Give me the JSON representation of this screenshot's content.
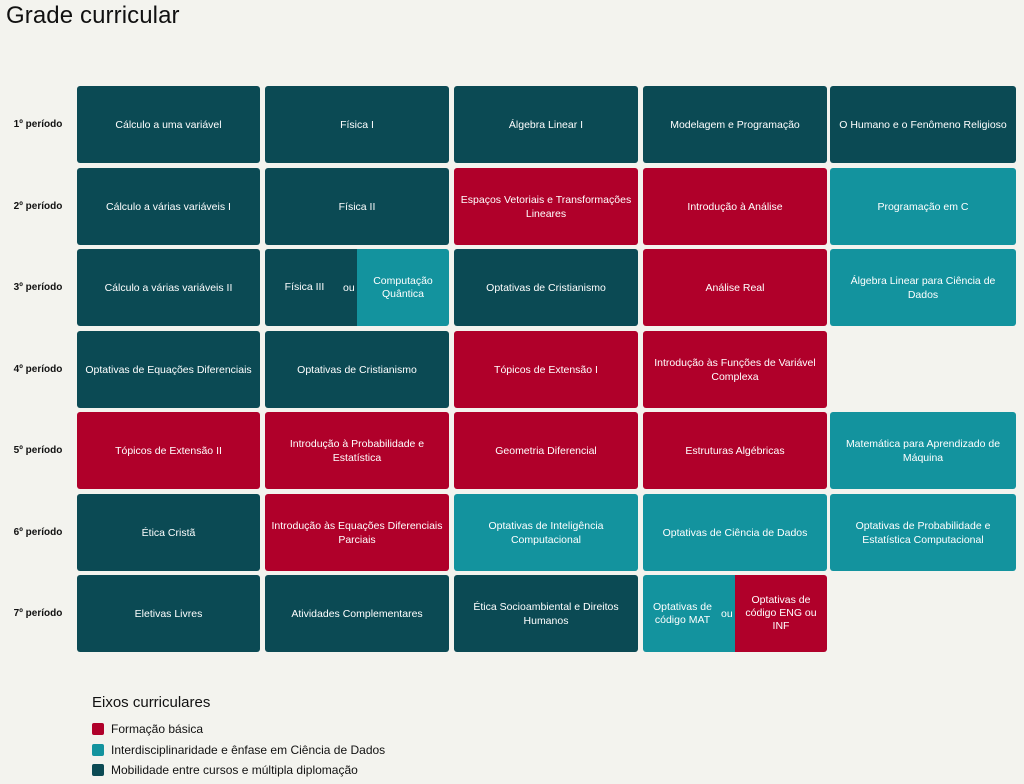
{
  "title": "Grade curricular",
  "colors": {
    "formacao_basica": "#b0002a",
    "interdisciplinaridade": "#13939e",
    "mobilidade": "#0b4a54",
    "background": "#f3f3ee"
  },
  "periods": [
    {
      "label": "1º período",
      "courses": [
        {
          "name": "Cálculo a uma variável",
          "axis": "mobilidade"
        },
        {
          "name": "Física I",
          "axis": "mobilidade"
        },
        {
          "name": "Álgebra Linear I",
          "axis": "mobilidade"
        },
        {
          "name": "Modelagem e Programação",
          "axis": "mobilidade"
        },
        {
          "name": "O Humano e o Fenômeno Religioso",
          "axis": "mobilidade"
        }
      ]
    },
    {
      "label": "2º período",
      "courses": [
        {
          "name": "Cálculo a várias variáveis I",
          "axis": "mobilidade"
        },
        {
          "name": "Física II",
          "axis": "mobilidade"
        },
        {
          "name": "Espaços Vetoriais e Transformações Lineares",
          "axis": "formacao_basica"
        },
        {
          "name": "Introdução à Análise",
          "axis": "formacao_basica"
        },
        {
          "name": "Programação em C",
          "axis": "interdisciplinaridade"
        }
      ]
    },
    {
      "label": "3º período",
      "courses": [
        {
          "name": "Cálculo a várias variáveis II",
          "axis": "mobilidade"
        },
        {
          "options": [
            {
              "name": "Física III",
              "axis": "mobilidade"
            },
            {
              "name": "Computação Quântica",
              "axis": "interdisciplinaridade"
            }
          ],
          "separator": "ou"
        },
        {
          "name": "Optativas de Cristianismo",
          "axis": "mobilidade"
        },
        {
          "name": "Análise Real",
          "axis": "formacao_basica"
        },
        {
          "name": "Álgebra Linear para Ciência de Dados",
          "axis": "interdisciplinaridade"
        }
      ]
    },
    {
      "label": "4º período",
      "courses": [
        {
          "name": "Optativas de Equações Diferenciais",
          "axis": "mobilidade"
        },
        {
          "name": "Optativas de Cristianismo",
          "axis": "mobilidade"
        },
        {
          "name": "Tópicos de Extensão I",
          "axis": "formacao_basica"
        },
        {
          "name": "Introdução às Funções de Variável Complexa",
          "axis": "formacao_basica"
        }
      ]
    },
    {
      "label": "5º período",
      "courses": [
        {
          "name": "Tópicos de Extensão II",
          "axis": "formacao_basica"
        },
        {
          "name": "Introdução à Probabilidade e Estatística",
          "axis": "formacao_basica"
        },
        {
          "name": "Geometria Diferencial",
          "axis": "formacao_basica"
        },
        {
          "name": "Estruturas Algébricas",
          "axis": "formacao_basica"
        },
        {
          "name": "Matemática para Aprendizado de Máquina",
          "axis": "interdisciplinaridade"
        }
      ]
    },
    {
      "label": "6º período",
      "courses": [
        {
          "name": "Ética Cristã",
          "axis": "mobilidade"
        },
        {
          "name": "Introdução às Equações Diferenciais Parciais",
          "axis": "formacao_basica"
        },
        {
          "name": "Optativas de Inteligência Computacional",
          "axis": "interdisciplinaridade"
        },
        {
          "name": "Optativas de Ciência de Dados",
          "axis": "interdisciplinaridade"
        },
        {
          "name": "Optativas de Probabilidade e Estatística Computacional",
          "axis": "interdisciplinaridade"
        }
      ]
    },
    {
      "label": "7º período",
      "courses": [
        {
          "name": "Eletivas Livres",
          "axis": "mobilidade"
        },
        {
          "name": "Atividades Complementares",
          "axis": "mobilidade"
        },
        {
          "name": "Ética Socioambiental e Direitos Humanos",
          "axis": "mobilidade"
        },
        {
          "options": [
            {
              "name": "Optativas de código MAT",
              "axis": "interdisciplinaridade"
            },
            {
              "name": "Optativas de código ENG ou INF",
              "axis": "formacao_basica"
            }
          ],
          "separator": "ou"
        }
      ]
    }
  ],
  "legend": {
    "title": "Eixos curriculares",
    "items": [
      {
        "label": "Formação básica",
        "axis": "formacao_basica"
      },
      {
        "label": "Interdisciplinaridade e ênfase em Ciência de Dados",
        "axis": "interdisciplinaridade"
      },
      {
        "label": "Mobilidade entre cursos e múltipla diplomação",
        "axis": "mobilidade"
      }
    ]
  }
}
